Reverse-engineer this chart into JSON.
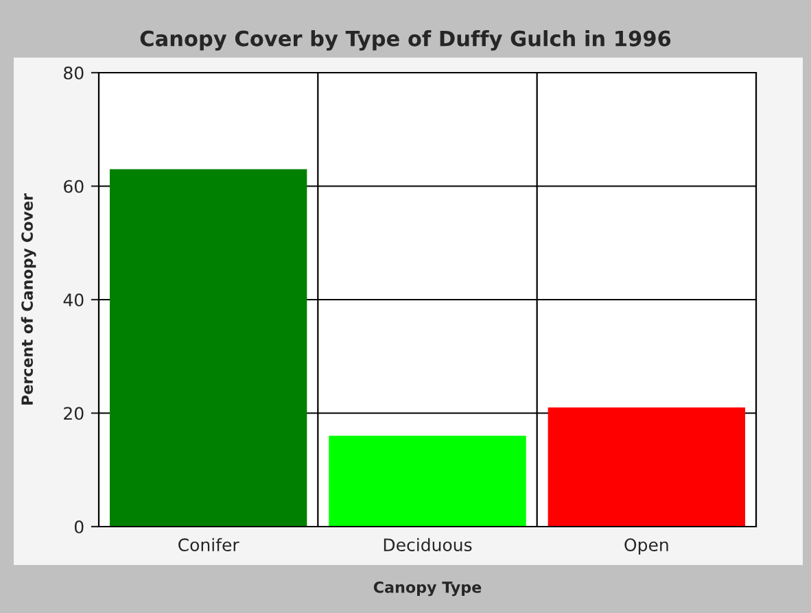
{
  "chart_data": {
    "type": "bar",
    "title": "Canopy Cover by Type of Duffy Gulch in 1996",
    "xlabel": "Canopy Type",
    "ylabel": "Percent of Canopy Cover",
    "categories": [
      "Conifer",
      "Deciduous",
      "Open"
    ],
    "values": [
      63,
      16,
      21
    ],
    "colors": [
      "#008000",
      "#00ff00",
      "#ff0000"
    ],
    "ylim": [
      0,
      80
    ],
    "yticks": [
      0,
      20,
      40,
      60,
      80
    ],
    "grid": true
  }
}
